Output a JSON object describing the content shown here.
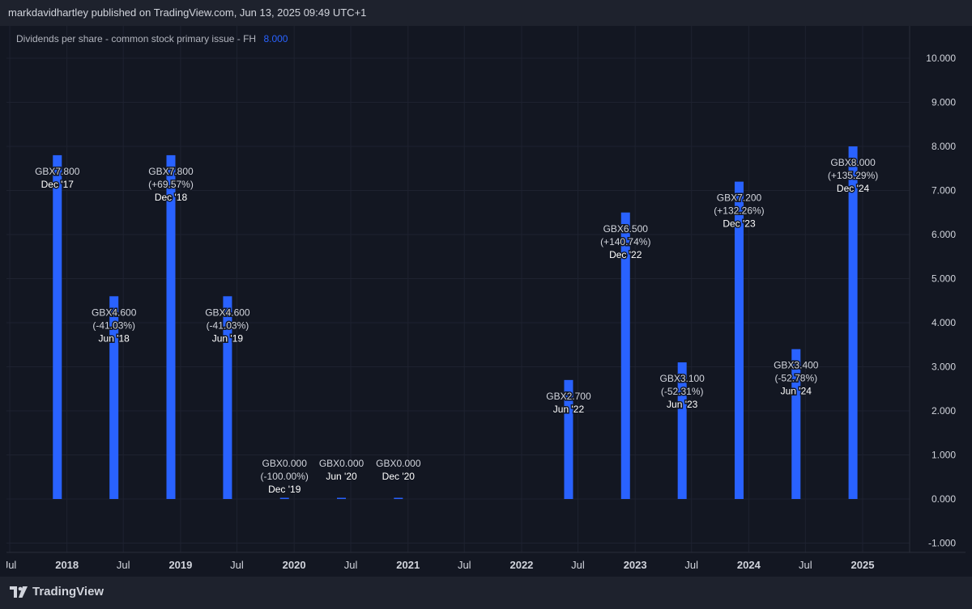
{
  "header": {
    "title": "markdavidhartley published on TradingView.com, Jun 13, 2025 09:49 UTC+1"
  },
  "legend": {
    "label": "Dividends per share - common stock primary issue - FH",
    "value": "8.000"
  },
  "brand": {
    "name": "TradingView",
    "icon": "tradingview-logo-icon"
  },
  "colors": {
    "background": "#131722",
    "bar": "#2962ff",
    "grid": "#1e2230",
    "text": "#d1d4dc"
  },
  "chart_data": {
    "type": "bar",
    "title": "Dividends per share - common stock primary issue - FH",
    "currency_prefix": "GBX",
    "ylim": [
      -1.0,
      10.0
    ],
    "y_ticks": [
      "10.000",
      "9.000",
      "8.000",
      "7.000",
      "6.000",
      "5.000",
      "4.000",
      "3.000",
      "2.000",
      "1.000",
      "0.000",
      "-1.000"
    ],
    "y_tick_values": [
      10,
      9,
      8,
      7,
      6,
      5,
      4,
      3,
      2,
      1,
      0,
      -1
    ],
    "x_ticks": [
      {
        "label": "Jul",
        "date": "2017-07-01",
        "bold": false
      },
      {
        "label": "2018",
        "date": "2018-01-01",
        "bold": true
      },
      {
        "label": "Jul",
        "date": "2018-07-01",
        "bold": false
      },
      {
        "label": "2019",
        "date": "2019-01-01",
        "bold": true
      },
      {
        "label": "Jul",
        "date": "2019-07-01",
        "bold": false
      },
      {
        "label": "2020",
        "date": "2020-01-01",
        "bold": true
      },
      {
        "label": "Jul",
        "date": "2020-07-01",
        "bold": false
      },
      {
        "label": "2021",
        "date": "2021-01-01",
        "bold": true
      },
      {
        "label": "Jul",
        "date": "2021-07-01",
        "bold": false
      },
      {
        "label": "2022",
        "date": "2022-01-01",
        "bold": true
      },
      {
        "label": "Jul",
        "date": "2022-07-01",
        "bold": false
      },
      {
        "label": "2023",
        "date": "2023-01-01",
        "bold": true
      },
      {
        "label": "Jul",
        "date": "2023-07-01",
        "bold": false
      },
      {
        "label": "2024",
        "date": "2024-01-01",
        "bold": true
      },
      {
        "label": "Jul",
        "date": "2024-07-01",
        "bold": false
      },
      {
        "label": "2025",
        "date": "2025-01-01",
        "bold": true
      }
    ],
    "bars": [
      {
        "date": "2017-12-01",
        "period": "Dec '17",
        "value": 7.8,
        "value_label": "GBX7.800",
        "change": ""
      },
      {
        "date": "2018-06-01",
        "period": "Jun '18",
        "value": 4.6,
        "value_label": "GBX4.600",
        "change": "(-41.03%)"
      },
      {
        "date": "2018-12-01",
        "period": "Dec '18",
        "value": 7.8,
        "value_label": "GBX7.800",
        "change": "(+69.57%)"
      },
      {
        "date": "2019-06-01",
        "period": "Jun '19",
        "value": 4.6,
        "value_label": "GBX4.600",
        "change": "(-41.03%)"
      },
      {
        "date": "2019-12-01",
        "period": "Dec '19",
        "value": 0.0,
        "value_label": "GBX0.000",
        "change": "(-100.00%)"
      },
      {
        "date": "2020-06-01",
        "period": "Jun '20",
        "value": 0.0,
        "value_label": "GBX0.000",
        "change": ""
      },
      {
        "date": "2020-12-01",
        "period": "Dec '20",
        "value": 0.0,
        "value_label": "GBX0.000",
        "change": ""
      },
      {
        "date": "2022-06-01",
        "period": "Jun '22",
        "value": 2.7,
        "value_label": "GBX2.700",
        "change": ""
      },
      {
        "date": "2022-12-01",
        "period": "Dec '22",
        "value": 6.5,
        "value_label": "GBX6.500",
        "change": "(+140.74%)"
      },
      {
        "date": "2023-06-01",
        "period": "Jun '23",
        "value": 3.1,
        "value_label": "GBX3.100",
        "change": "(-52.31%)"
      },
      {
        "date": "2023-12-01",
        "period": "Dec '23",
        "value": 7.2,
        "value_label": "GBX7.200",
        "change": "(+132.26%)"
      },
      {
        "date": "2024-06-01",
        "period": "Jun '24",
        "value": 3.4,
        "value_label": "GBX3.400",
        "change": "(-52.78%)"
      },
      {
        "date": "2024-12-01",
        "period": "Dec '24",
        "value": 8.0,
        "value_label": "GBX8.000",
        "change": "(+135.29%)"
      }
    ],
    "grid": true,
    "legend_position": "top-left"
  }
}
